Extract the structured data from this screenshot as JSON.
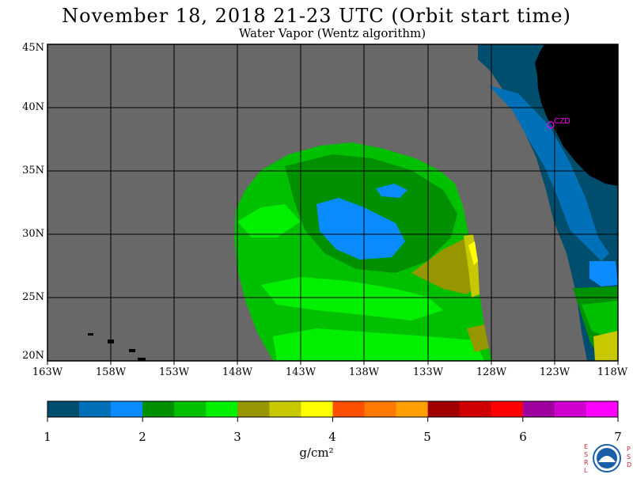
{
  "header": {
    "title": "November 18, 2018  21-23 UTC  (Orbit start time)",
    "subtitle": "Water Vapor (Wentz algorithm)"
  },
  "map": {
    "lat_labels": [
      "45N",
      "40N",
      "35N",
      "30N",
      "25N",
      "20N"
    ],
    "lon_labels": [
      "163W",
      "158W",
      "153W",
      "148W",
      "143W",
      "138W",
      "133W",
      "128W",
      "123W",
      "118W"
    ],
    "station_label": "CZD",
    "colors": {
      "ocean_missing": "#686868",
      "land": "#000000",
      "grid": "#000000",
      "station": "#ff00ff"
    }
  },
  "colorbar": {
    "tick_labels": [
      "1",
      "2",
      "3",
      "4",
      "5",
      "6",
      "7"
    ],
    "units": "g/cm²",
    "colors": [
      "#004e6e",
      "#0070b8",
      "#0a8cff",
      "#009000",
      "#00c000",
      "#00f000",
      "#969600",
      "#c8c800",
      "#ffff00",
      "#ff5000",
      "#ff7800",
      "#ffa000",
      "#a00000",
      "#d00000",
      "#ff0000",
      "#a000a0",
      "#d000d0",
      "#ff00ff"
    ]
  },
  "logo": {
    "left_text": "ESRL",
    "right_text": "PSD",
    "center_text": "NOAA"
  }
}
